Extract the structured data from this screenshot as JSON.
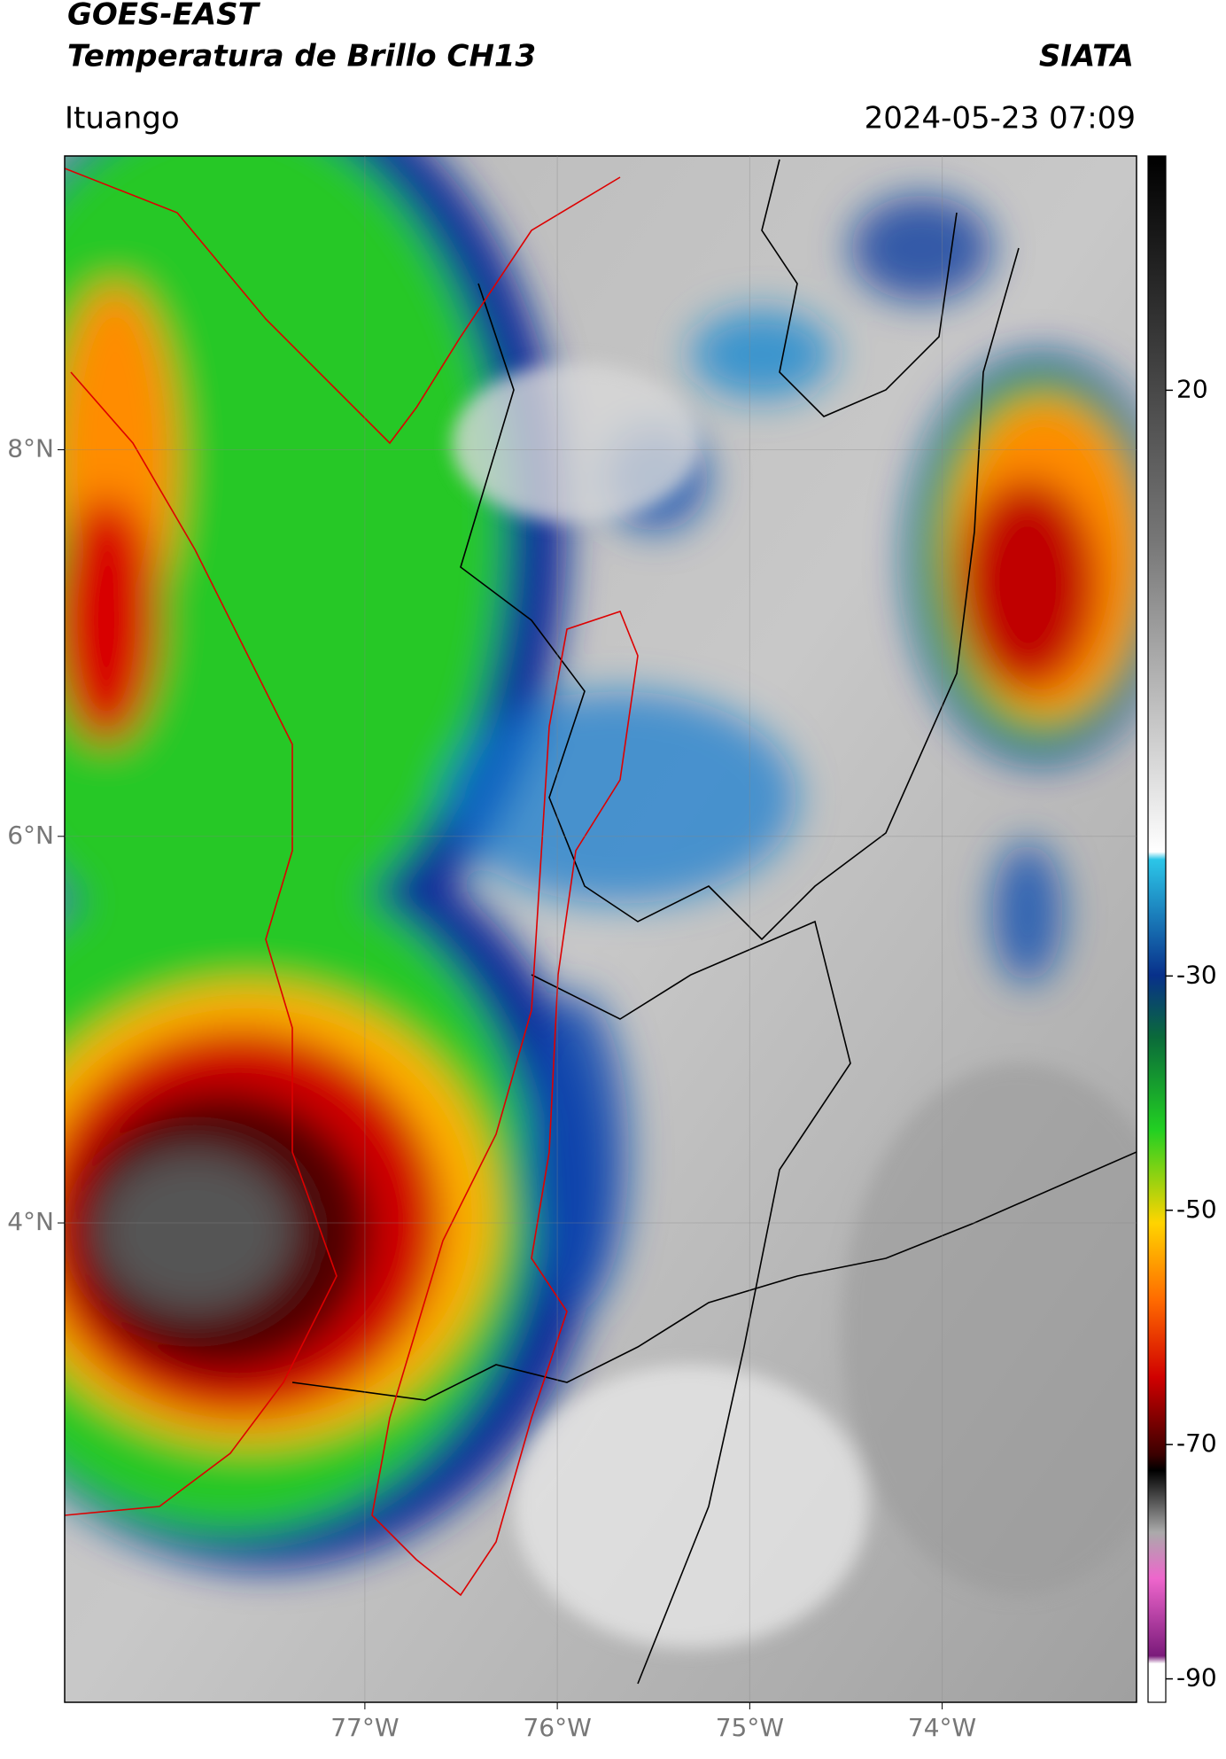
{
  "header": {
    "title": "GOES-EAST",
    "subtitle": "Temperatura de Brillo CH13",
    "source": "SIATA",
    "location": "Ituango",
    "datetime": "2024-05-23 07:09"
  },
  "map": {
    "xlim": [
      -78.56,
      -72.99
    ],
    "ylim": [
      1.52,
      9.52
    ],
    "xticks": [
      {
        "value": -77,
        "label": "77°W"
      },
      {
        "value": -76,
        "label": "76°W"
      },
      {
        "value": -75,
        "label": "75°W"
      },
      {
        "value": -74,
        "label": "74°W"
      }
    ],
    "yticks": [
      {
        "value": 8,
        "label": "8°N"
      },
      {
        "value": 6,
        "label": "6°N"
      },
      {
        "value": 4,
        "label": "4°N"
      }
    ]
  },
  "colorbar": {
    "clim": [
      -92,
      40
    ],
    "ticks": [
      20,
      -30,
      -50,
      -70,
      -90
    ]
  }
}
